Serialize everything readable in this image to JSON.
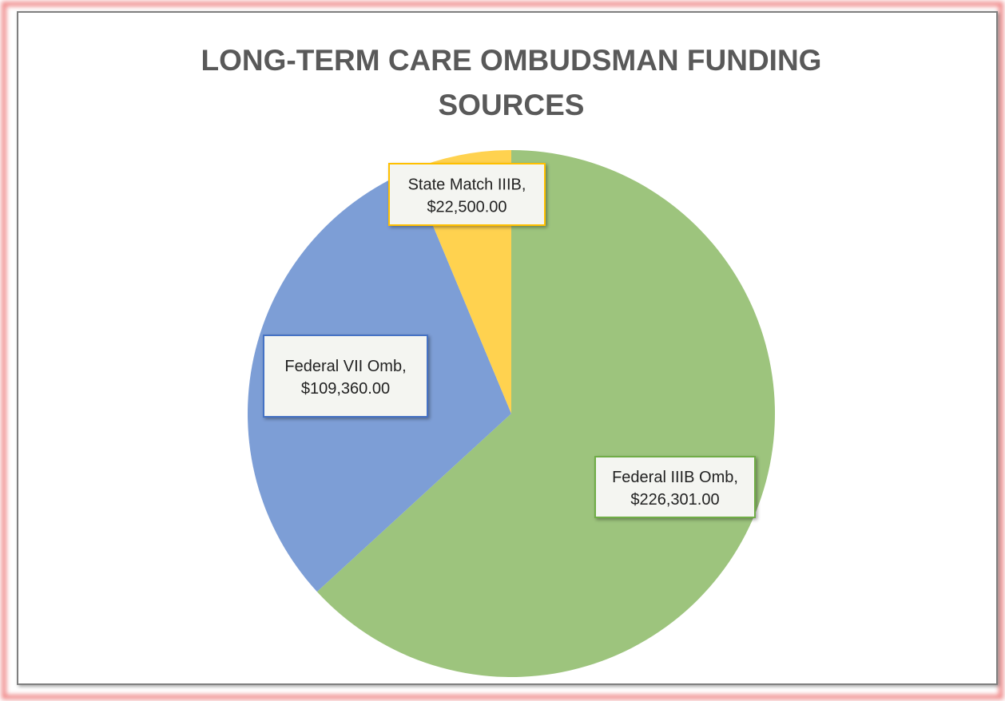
{
  "chart_data": {
    "type": "pie",
    "title": "LONG-TERM CARE OMBUDSMAN FUNDING SOURCES",
    "categories": [
      "Federal IIIB Omb,",
      "Federal VII Omb,",
      "State Match IIIB,"
    ],
    "values": [
      226301,
      109360,
      22500
    ],
    "value_labels": [
      "$226,301.00",
      "$109,360.00",
      "$22,500.00"
    ],
    "colors": [
      "#9dc47d",
      "#7d9ed6",
      "#ffd24f"
    ],
    "label_borders": [
      "#70ad47",
      "#4472c4",
      "#ffc000"
    ]
  }
}
